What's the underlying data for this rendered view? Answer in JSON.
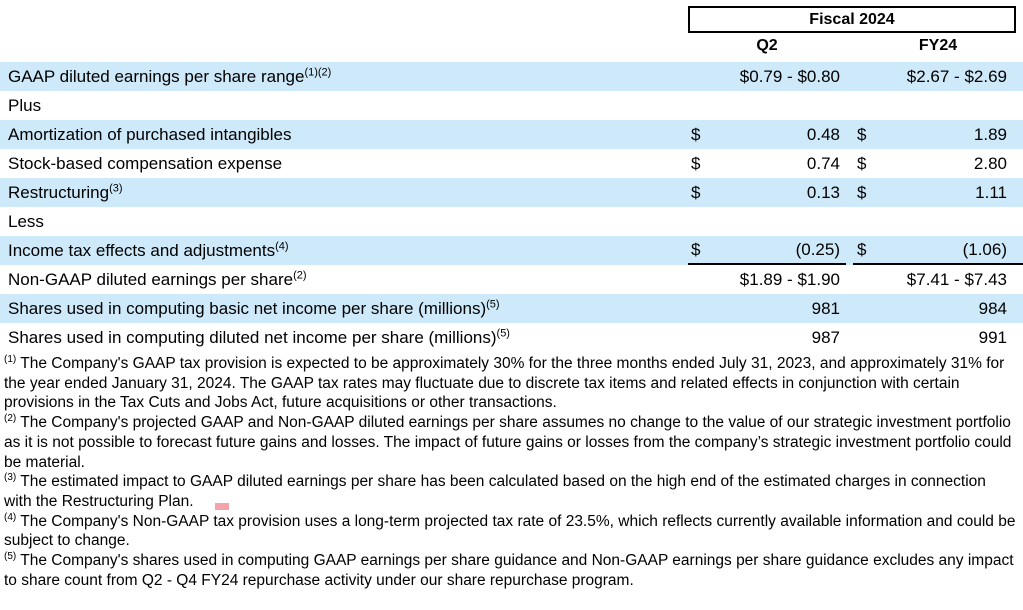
{
  "header": {
    "group_title": "Fiscal 2024",
    "columns": [
      "Q2",
      "FY24"
    ]
  },
  "colors": {
    "row_shade": "#cee9f9",
    "annotation_mark": "#f4a3ac",
    "rule": "#000000"
  },
  "table": {
    "rows": [
      {
        "label": "GAAP diluted earnings per share range",
        "sup": "(1)(2)",
        "q2cur": "",
        "q2val": "$0.79 - $0.80",
        "fycur": "",
        "fyval": "$2.67 - $2.69"
      },
      {
        "label": "Plus",
        "sup": "",
        "q2cur": "",
        "q2val": "",
        "fycur": "",
        "fyval": ""
      },
      {
        "label": "Amortization of purchased intangibles",
        "sup": "",
        "q2cur": "$",
        "q2val": "0.48",
        "fycur": "$",
        "fyval": "1.89"
      },
      {
        "label": "Stock-based compensation expense",
        "sup": "",
        "q2cur": "$",
        "q2val": "0.74",
        "fycur": "$",
        "fyval": "2.80"
      },
      {
        "label": "Restructuring",
        "sup": "(3)",
        "q2cur": "$",
        "q2val": "0.13",
        "fycur": "$",
        "fyval": "1.11"
      },
      {
        "label": "Less",
        "sup": "",
        "q2cur": "",
        "q2val": "",
        "fycur": "",
        "fyval": ""
      },
      {
        "label": "Income tax effects and adjustments",
        "sup": "(4)",
        "q2cur": "$",
        "q2val": "(0.25)",
        "fycur": "$",
        "fyval": "(1.06)"
      },
      {
        "label": "Non-GAAP diluted earnings per share",
        "sup": "(2)",
        "q2cur": "",
        "q2val": "$1.89 - $1.90",
        "fycur": "",
        "fyval": "$7.41 - $7.43"
      },
      {
        "label": "Shares used in computing basic net income per share (millions)",
        "sup": "(5)",
        "q2cur": "",
        "q2val": "981",
        "fycur": "",
        "fyval": "984"
      },
      {
        "label": "Shares used in computing diluted net income per share (millions)",
        "sup": "(5)",
        "q2cur": "",
        "q2val": "987",
        "fycur": "",
        "fyval": "991"
      }
    ]
  },
  "footnotes": [
    {
      "sup": "(1)",
      "text": "The Company's GAAP tax provision is expected to be approximately 30% for the three months ended July 31, 2023, and approximately 31% for the year ended January 31, 2024. The GAAP tax rates may fluctuate due to discrete tax items and related effects in conjunction with certain provisions in the Tax Cuts and Jobs Act, future acquisitions or other transactions."
    },
    {
      "sup": "(2)",
      "text": "The Company's projected GAAP and Non-GAAP diluted earnings per share assumes no change to the value of our strategic investment portfolio as it is not possible to forecast future gains and losses. The impact of future gains or losses from the company’s strategic investment portfolio could be material."
    },
    {
      "sup": "(3)",
      "text": "The estimated impact to GAAP diluted earnings per share has been calculated based on the high end of the estimated charges in connection with the Restructuring Plan."
    },
    {
      "sup": "(4)",
      "text": "The Company's Non-GAAP tax provision uses a long-term projected tax rate of 23.5%, which reflects currently available information and could be subject to change."
    },
    {
      "sup": "(5)",
      "text": "The Company's shares used in computing GAAP earnings per share guidance and Non-GAAP earnings per share guidance excludes any impact to share count from Q2 - Q4 FY24 repurchase activity under our share repurchase program."
    }
  ]
}
